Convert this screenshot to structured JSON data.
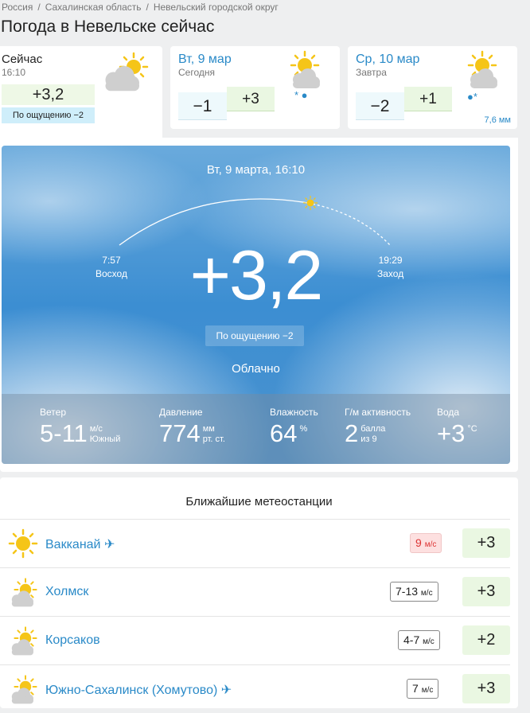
{
  "breadcrumb": [
    "Россия",
    "Сахалинская область",
    "Невельский городской округ"
  ],
  "page_title": "Погода в Невельске сейчас",
  "now": {
    "label": "Сейчас",
    "time": "16:10",
    "temp": "+3,2",
    "feels": "По ощущению −2",
    "icon": "partly-cloudy-icon"
  },
  "days": [
    {
      "date": "Вт, 9 мар",
      "sub": "Сегодня",
      "low": "−1",
      "high": "+3",
      "icon": "cloud-sun-snow-rain-icon",
      "precip": "* ●",
      "mm": ""
    },
    {
      "date": "Ср, 10 мар",
      "sub": "Завтра",
      "low": "−2",
      "high": "+1",
      "icon": "cloud-sun-snow-rain-icon",
      "precip": "●*",
      "mm": "7,6 мм"
    }
  ],
  "main": {
    "datetime": "Вт, 9 марта, 16:10",
    "temp": "+3,2",
    "sunrise_time": "7:57",
    "sunrise_label": "Восход",
    "sunset_time": "19:29",
    "sunset_label": "Заход",
    "feels": "По ощущению −2",
    "condition": "Облачно",
    "stats": [
      {
        "label": "Ветер",
        "value": "5-11",
        "unit1": "м/с",
        "unit2": "Южный"
      },
      {
        "label": "Давление",
        "value": "774",
        "unit1": "мм",
        "unit2": "рт. ст."
      },
      {
        "label": "Влажность",
        "value": "64",
        "unit1": "%",
        "unit2": ""
      },
      {
        "label": "Г/м активность",
        "value": "2",
        "unit1": "балла",
        "unit2": "из 9"
      },
      {
        "label": "Вода",
        "value": "+3",
        "unit1": "°C",
        "unit2": ""
      }
    ]
  },
  "stations": {
    "title": "Ближайшие метеостанции",
    "items": [
      {
        "name": "Вакканай",
        "airport": true,
        "wind": "9",
        "wind_unit": "м/с",
        "wind_alert": true,
        "temp": "+3",
        "icon": "sun-icon"
      },
      {
        "name": "Холмск",
        "airport": false,
        "wind": "7-13",
        "wind_unit": "м/с",
        "wind_alert": false,
        "temp": "+3",
        "icon": "partly-cloudy-icon"
      },
      {
        "name": "Корсаков",
        "airport": false,
        "wind": "4-7",
        "wind_unit": "м/с",
        "wind_alert": false,
        "temp": "+2",
        "icon": "partly-cloudy-icon"
      },
      {
        "name": "Южно-Сахалинск (Хомутово)",
        "airport": true,
        "wind": "7",
        "wind_unit": "м/с",
        "wind_alert": false,
        "temp": "+3",
        "icon": "partly-cloudy-icon"
      }
    ]
  },
  "colors": {
    "link": "#2a8ac8",
    "warm": "#eaf7e2",
    "cold": "#eef9fc",
    "alert": "#fde0e0"
  }
}
